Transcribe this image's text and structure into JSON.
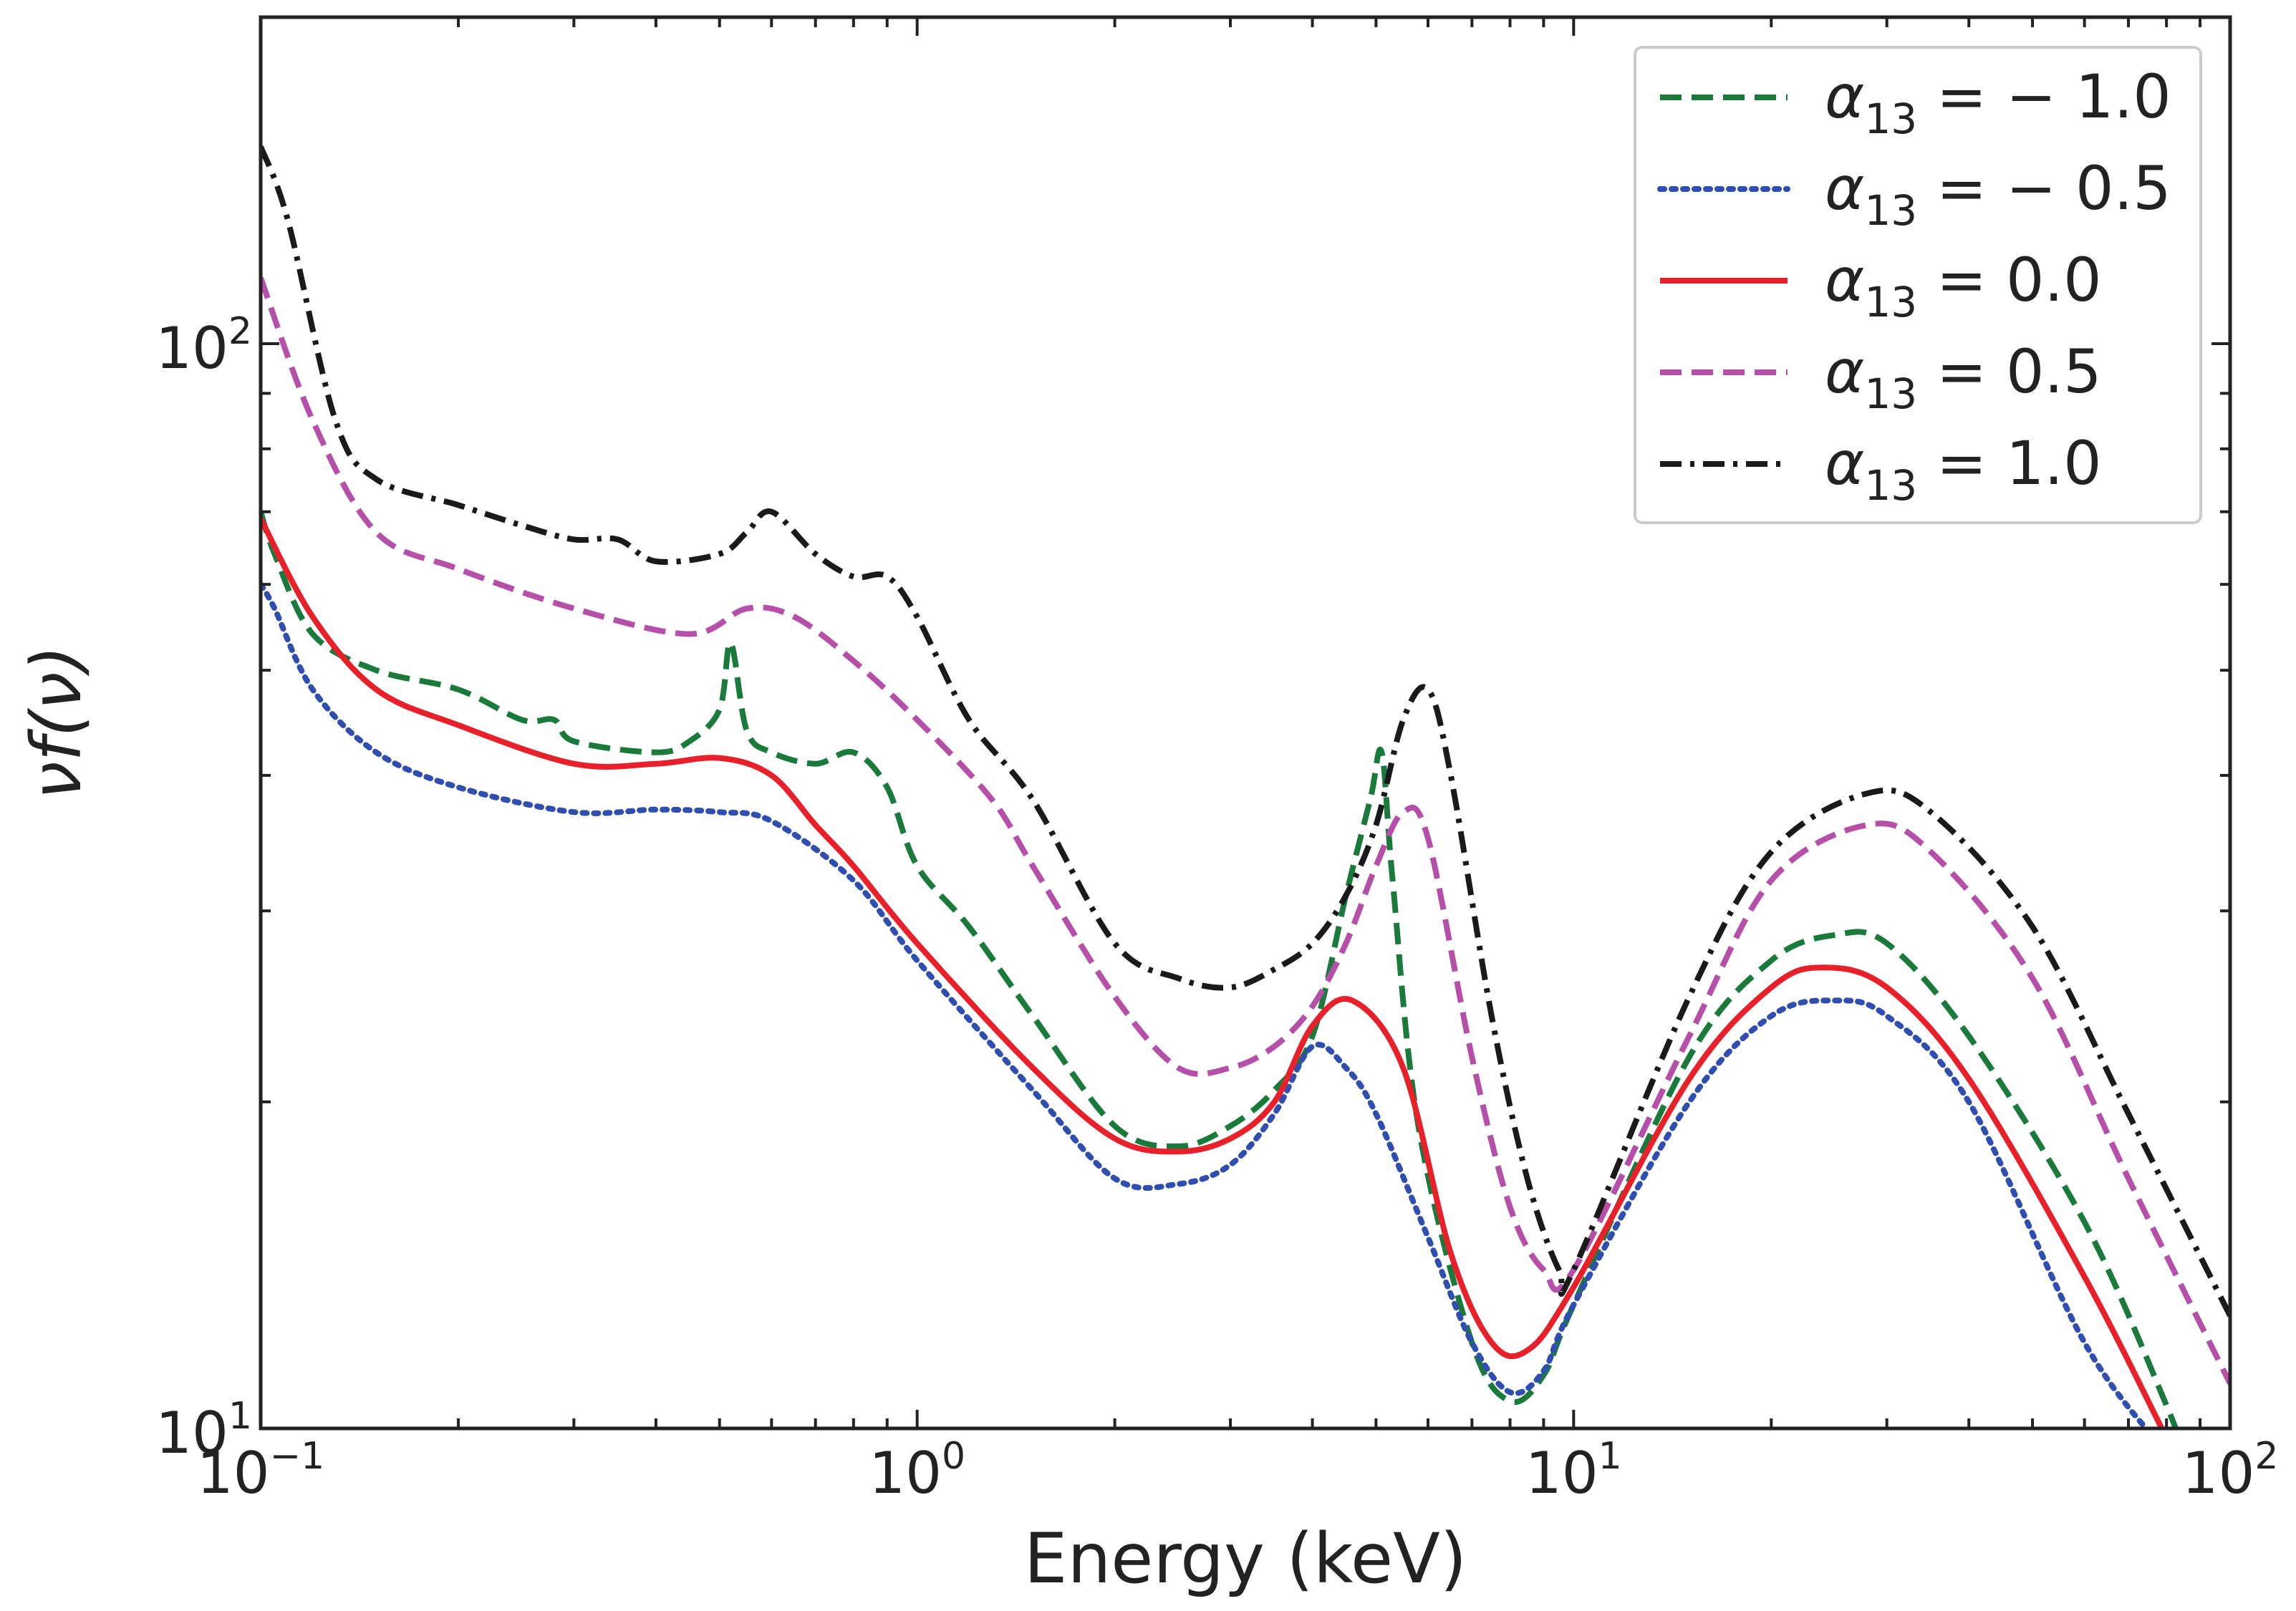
{
  "chart_data": {
    "type": "line",
    "xscale": "log",
    "yscale": "log",
    "xlim": [
      0.1,
      100
    ],
    "ylim": [
      10,
      200
    ],
    "xlabel": "Energy (keV)",
    "ylabel": "νf(ν)",
    "grid": false,
    "legend_position": "top-right",
    "x_major_ticks": [
      {
        "value": 0.1,
        "base": "10",
        "exp": "−1"
      },
      {
        "value": 1,
        "base": "10",
        "exp": "0"
      },
      {
        "value": 10,
        "base": "10",
        "exp": "1"
      },
      {
        "value": 100,
        "base": "10",
        "exp": "2"
      }
    ],
    "y_major_ticks": [
      {
        "value": 10,
        "base": "10",
        "exp": "1"
      },
      {
        "value": 100,
        "base": "10",
        "exp": "2"
      }
    ],
    "series": [
      {
        "name": "α13 = −1.0",
        "legend": {
          "symbol": "α",
          "sub": "13",
          "rest": " = − 1.0"
        },
        "color": "#1a7a3c",
        "dash": "dashed",
        "points": [
          [
            0.1,
            70
          ],
          [
            0.105,
            64
          ],
          [
            0.12,
            54
          ],
          [
            0.15,
            50
          ],
          [
            0.2,
            48
          ],
          [
            0.25,
            45
          ],
          [
            0.28,
            45
          ],
          [
            0.3,
            43
          ],
          [
            0.4,
            42
          ],
          [
            0.45,
            43
          ],
          [
            0.5,
            46
          ],
          [
            0.52,
            53
          ],
          [
            0.55,
            44
          ],
          [
            0.6,
            42
          ],
          [
            0.7,
            41
          ],
          [
            0.8,
            42
          ],
          [
            0.9,
            39
          ],
          [
            1.0,
            33
          ],
          [
            1.2,
            29
          ],
          [
            1.5,
            24
          ],
          [
            2.0,
            19
          ],
          [
            2.5,
            18.2
          ],
          [
            3.0,
            19
          ],
          [
            3.5,
            20.5
          ],
          [
            4.0,
            23
          ],
          [
            4.5,
            31
          ],
          [
            4.9,
            38
          ],
          [
            5.1,
            42
          ],
          [
            5.3,
            32
          ],
          [
            5.8,
            19
          ],
          [
            7.0,
            12
          ],
          [
            8.0,
            10.6
          ],
          [
            9.0,
            11.2
          ],
          [
            10.0,
            13
          ],
          [
            15.0,
            22
          ],
          [
            20.0,
            27
          ],
          [
            25.0,
            28.5
          ],
          [
            30.0,
            28
          ],
          [
            40.0,
            23
          ],
          [
            60.0,
            15.5
          ],
          [
            80.0,
            10.5
          ],
          [
            84.0,
            9.6
          ]
        ]
      },
      {
        "name": "α13 = −0.5",
        "legend": {
          "symbol": "α",
          "sub": "13",
          "rest": " = − 0.5"
        },
        "color": "#2f4eb0",
        "dash": "dotted",
        "points": [
          [
            0.1,
            60
          ],
          [
            0.105,
            57
          ],
          [
            0.12,
            48
          ],
          [
            0.15,
            42
          ],
          [
            0.2,
            39
          ],
          [
            0.3,
            37
          ],
          [
            0.4,
            37.2
          ],
          [
            0.5,
            37
          ],
          [
            0.6,
            36.3
          ],
          [
            0.8,
            32
          ],
          [
            1.0,
            27
          ],
          [
            1.5,
            20.5
          ],
          [
            2.0,
            17
          ],
          [
            2.5,
            16.8
          ],
          [
            3.0,
            17.5
          ],
          [
            3.5,
            19.5
          ],
          [
            4.0,
            22.5
          ],
          [
            4.5,
            21.5
          ],
          [
            5.0,
            19.5
          ],
          [
            6.0,
            15
          ],
          [
            7.0,
            12
          ],
          [
            8.0,
            10.8
          ],
          [
            9.0,
            11.3
          ],
          [
            10.0,
            13
          ],
          [
            15.0,
            20
          ],
          [
            20.0,
            24
          ],
          [
            25.0,
            24.8
          ],
          [
            30.0,
            24
          ],
          [
            40.0,
            20
          ],
          [
            60.0,
            12
          ],
          [
            80.0,
            9.5
          ]
        ]
      },
      {
        "name": "α13 = 0.0",
        "legend": {
          "symbol": "α",
          "sub": "13",
          "rest": " = 0.0"
        },
        "color": "#e8202a",
        "dash": "solid",
        "points": [
          [
            0.1,
            69
          ],
          [
            0.12,
            56
          ],
          [
            0.15,
            48
          ],
          [
            0.2,
            44.5
          ],
          [
            0.3,
            41
          ],
          [
            0.4,
            41
          ],
          [
            0.5,
            41.5
          ],
          [
            0.6,
            40
          ],
          [
            0.7,
            36
          ],
          [
            0.8,
            33
          ],
          [
            1.0,
            28
          ],
          [
            1.5,
            21.5
          ],
          [
            2.0,
            18.5
          ],
          [
            2.5,
            18
          ],
          [
            3.0,
            18.5
          ],
          [
            3.5,
            20
          ],
          [
            4.0,
            23.5
          ],
          [
            4.6,
            24.8
          ],
          [
            5.5,
            21.5
          ],
          [
            6.5,
            14.5
          ],
          [
            7.5,
            12
          ],
          [
            8.5,
            11.8
          ],
          [
            10.0,
            13.5
          ],
          [
            15.0,
            21
          ],
          [
            20.0,
            25.5
          ],
          [
            24.0,
            26.6
          ],
          [
            30.0,
            25.5
          ],
          [
            40.0,
            21
          ],
          [
            60.0,
            13.8
          ],
          [
            80.0,
            9.8
          ]
        ]
      },
      {
        "name": "α13 = 0.5",
        "legend": {
          "symbol": "α",
          "sub": "13",
          "rest": " = 0.5"
        },
        "color": "#b64fa8",
        "dash": "dashed",
        "points": [
          [
            0.1,
            115
          ],
          [
            0.12,
            85
          ],
          [
            0.15,
            67
          ],
          [
            0.2,
            62
          ],
          [
            0.3,
            57
          ],
          [
            0.45,
            54
          ],
          [
            0.55,
            57
          ],
          [
            0.65,
            56
          ],
          [
            0.8,
            51
          ],
          [
            1.0,
            45
          ],
          [
            1.3,
            38
          ],
          [
            1.5,
            33
          ],
          [
            2.0,
            25
          ],
          [
            2.5,
            21.5
          ],
          [
            3.0,
            21.5
          ],
          [
            3.5,
            22.5
          ],
          [
            4.0,
            24.5
          ],
          [
            4.5,
            28
          ],
          [
            5.0,
            33
          ],
          [
            5.5,
            37
          ],
          [
            6.0,
            35
          ],
          [
            7.0,
            22
          ],
          [
            8.0,
            16
          ],
          [
            9.0,
            14
          ],
          [
            10.0,
            14
          ],
          [
            15.0,
            23
          ],
          [
            20.0,
            32
          ],
          [
            28.0,
            36
          ],
          [
            35.0,
            34
          ],
          [
            50.0,
            26
          ],
          [
            70.0,
            17
          ],
          [
            100.0,
            11
          ]
        ]
      },
      {
        "name": "α13 = 1.0",
        "legend": {
          "symbol": "α",
          "sub": "13",
          "rest": " = 1.0"
        },
        "color": "#1a1a1a",
        "dash": "dashdot",
        "points": [
          [
            0.1,
            152
          ],
          [
            0.11,
            130
          ],
          [
            0.13,
            85
          ],
          [
            0.15,
            75
          ],
          [
            0.2,
            71
          ],
          [
            0.25,
            68
          ],
          [
            0.3,
            66
          ],
          [
            0.35,
            66
          ],
          [
            0.4,
            63
          ],
          [
            0.5,
            64
          ],
          [
            0.55,
            67
          ],
          [
            0.6,
            70
          ],
          [
            0.7,
            64
          ],
          [
            0.8,
            61
          ],
          [
            0.9,
            61
          ],
          [
            1.0,
            56
          ],
          [
            1.2,
            45
          ],
          [
            1.5,
            38
          ],
          [
            2.0,
            28
          ],
          [
            2.5,
            26
          ],
          [
            3.0,
            25.5
          ],
          [
            3.5,
            26.5
          ],
          [
            4.0,
            28
          ],
          [
            4.5,
            31
          ],
          [
            5.0,
            36
          ],
          [
            5.5,
            45
          ],
          [
            6.0,
            48
          ],
          [
            6.5,
            40
          ],
          [
            7.5,
            24
          ],
          [
            8.5,
            17
          ],
          [
            9.5,
            14
          ],
          [
            10.0,
            14
          ],
          [
            15.0,
            25
          ],
          [
            20.0,
            34
          ],
          [
            28.0,
            38.5
          ],
          [
            35.0,
            37
          ],
          [
            50.0,
            29
          ],
          [
            70.0,
            19.5
          ],
          [
            100.0,
            12.7
          ]
        ]
      }
    ]
  }
}
